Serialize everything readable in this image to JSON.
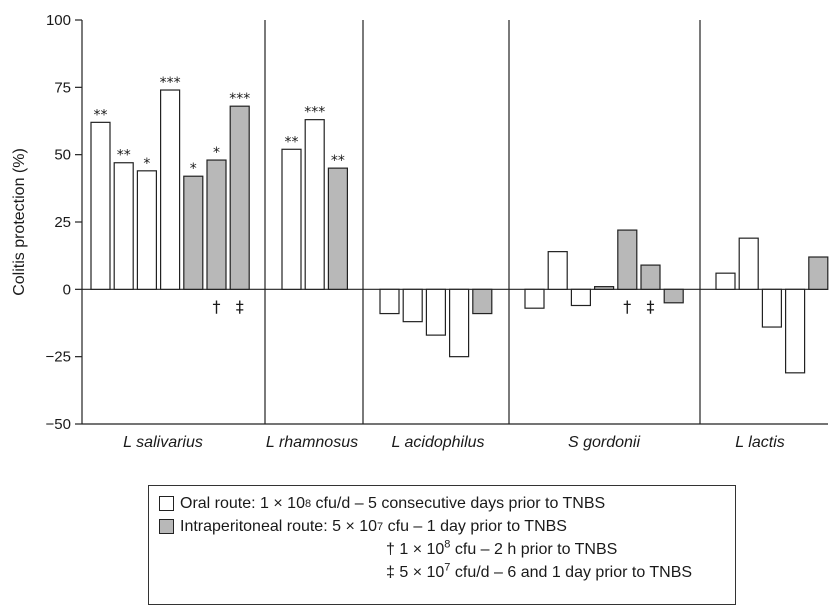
{
  "chart_data": {
    "type": "bar",
    "ylabel": "Colitis protection (%)",
    "ylim": [
      -50,
      100
    ],
    "yticks": [
      100,
      75,
      50,
      25,
      0,
      -25,
      -50
    ],
    "colors": {
      "oral": "#ffffff",
      "intraperitoneal": "#b8b8b8"
    },
    "groups": [
      {
        "name": "L salivarius",
        "bars": [
          {
            "value": 62,
            "route": "oral",
            "sig": "**"
          },
          {
            "value": 47,
            "route": "oral",
            "sig": "**"
          },
          {
            "value": 44,
            "route": "oral",
            "sig": "*"
          },
          {
            "value": 74,
            "route": "oral",
            "sig": "***"
          },
          {
            "value": 42,
            "route": "intraperitoneal",
            "sig": "*"
          },
          {
            "value": 48,
            "route": "intraperitoneal",
            "sig": "*",
            "marker": "†"
          },
          {
            "value": 68,
            "route": "intraperitoneal",
            "sig": "***",
            "marker": "‡"
          }
        ]
      },
      {
        "name": "L rhamnosus",
        "bars": [
          {
            "value": 52,
            "route": "oral",
            "sig": "**"
          },
          {
            "value": 63,
            "route": "oral",
            "sig": "***"
          },
          {
            "value": 45,
            "route": "intraperitoneal",
            "sig": "**"
          }
        ]
      },
      {
        "name": "L acidophilus",
        "bars": [
          {
            "value": -9,
            "route": "oral"
          },
          {
            "value": -12,
            "route": "oral"
          },
          {
            "value": -17,
            "route": "oral"
          },
          {
            "value": -25,
            "route": "oral"
          },
          {
            "value": -9,
            "route": "intraperitoneal"
          }
        ]
      },
      {
        "name": "S gordonii",
        "bars": [
          {
            "value": -7,
            "route": "oral"
          },
          {
            "value": 14,
            "route": "oral"
          },
          {
            "value": -6,
            "route": "oral"
          },
          {
            "value": 1,
            "route": "intraperitoneal"
          },
          {
            "value": 22,
            "route": "intraperitoneal",
            "marker": "†"
          },
          {
            "value": 9,
            "route": "intraperitoneal",
            "marker": "‡"
          },
          {
            "value": -5,
            "route": "intraperitoneal"
          }
        ]
      },
      {
        "name": "L lactis",
        "bars": [
          {
            "value": 6,
            "route": "oral"
          },
          {
            "value": 19,
            "route": "oral"
          },
          {
            "value": -14,
            "route": "oral"
          },
          {
            "value": -31,
            "route": "oral"
          },
          {
            "value": 12,
            "route": "intraperitoneal"
          }
        ]
      }
    ]
  },
  "legend": {
    "oral_route": "Oral route:",
    "oral_dose": "1 × 10",
    "oral_exp": "8",
    "oral_rest": " cfu/d – 5 consecutive days prior to TNBS",
    "ip_route": "Intraperitoneal route:",
    "ip_dose": "5 × 10",
    "ip_exp": "7",
    "ip_rest": " cfu – 1 day prior to TNBS",
    "dagger_sym": "†",
    "dagger_dose": "1 × 10",
    "dagger_exp": "8",
    "dagger_rest": " cfu – 2 h prior to TNBS",
    "ddagger_sym": "‡",
    "ddagger_dose": "5 × 10",
    "ddagger_exp": "7",
    "ddagger_rest": " cfu/d – 6 and 1 day prior to TNBS"
  }
}
